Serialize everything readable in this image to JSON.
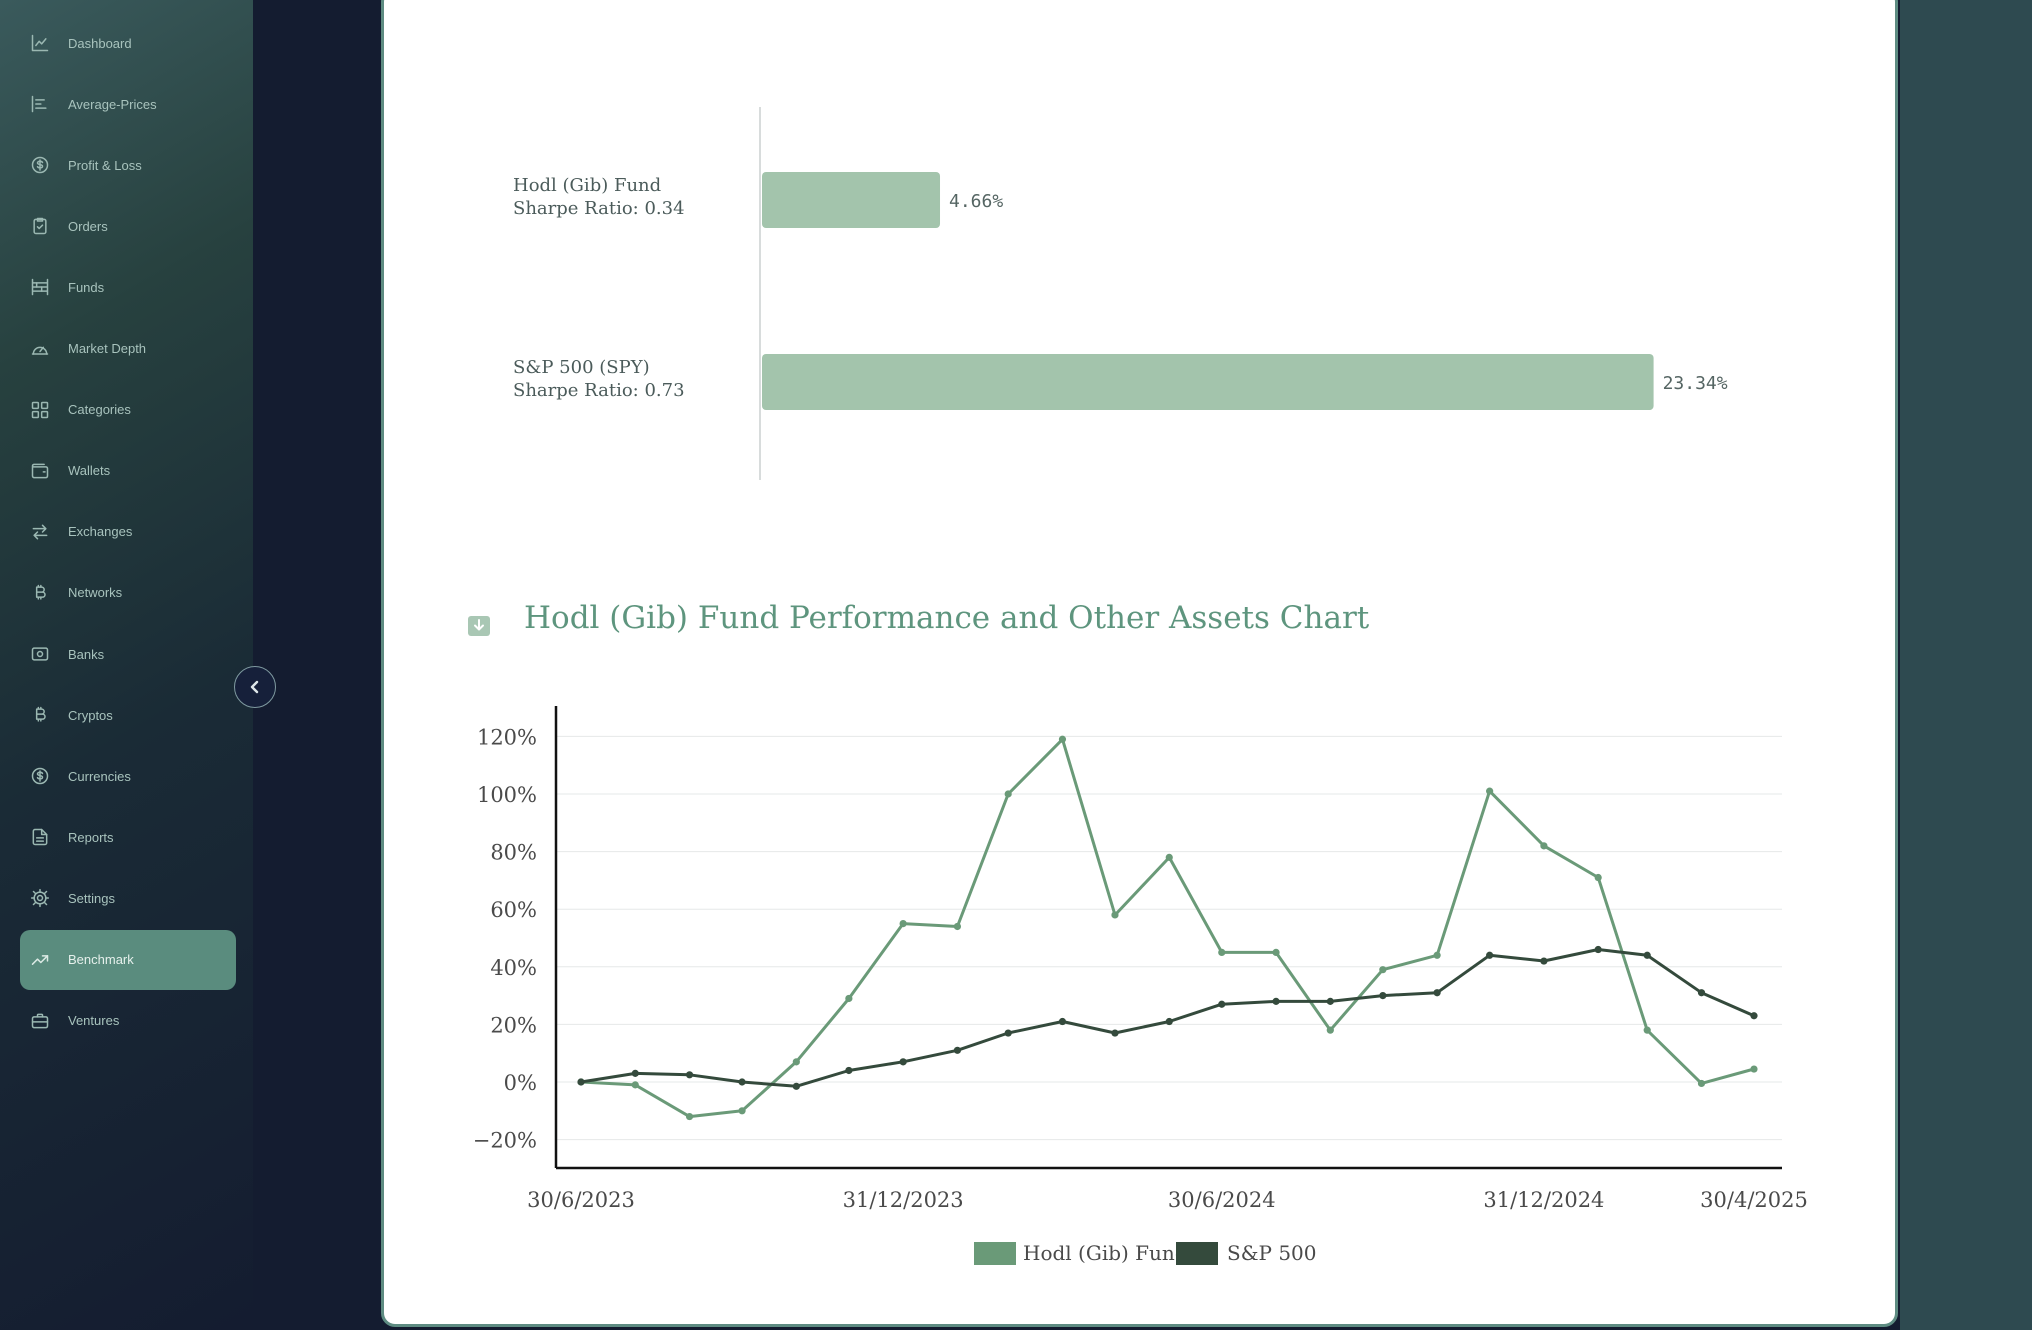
{
  "nav": {
    "items": [
      {
        "label": "Dashboard",
        "icon": "line-chart-icon"
      },
      {
        "label": "Average-Prices",
        "icon": "bar-align-left-icon"
      },
      {
        "label": "Profit & Loss",
        "icon": "dollar-circle-icon"
      },
      {
        "label": "Orders",
        "icon": "clipboard-check-icon"
      },
      {
        "label": "Funds",
        "icon": "funds-rows-icon"
      },
      {
        "label": "Market Depth",
        "icon": "gauge-icon"
      },
      {
        "label": "Categories",
        "icon": "grid-icon"
      },
      {
        "label": "Wallets",
        "icon": "wallet-icon"
      },
      {
        "label": "Exchanges",
        "icon": "arrows-exchange-icon"
      },
      {
        "label": "Networks",
        "icon": "bitcoin-icon"
      },
      {
        "label": "Banks",
        "icon": "banknote-icon"
      },
      {
        "label": "Cryptos",
        "icon": "bitcoin-icon"
      },
      {
        "label": "Currencies",
        "icon": "dollar-circle-icon"
      },
      {
        "label": "Reports",
        "icon": "file-text-icon"
      },
      {
        "label": "Settings",
        "icon": "gear-icon"
      },
      {
        "label": "Benchmark",
        "icon": "trending-up-icon"
      },
      {
        "label": "Ventures",
        "icon": "briefcase-icon"
      }
    ],
    "active": "Benchmark"
  },
  "colors": {
    "accent": "#5a8c7e",
    "fund_line": "#6a9a78",
    "spy_line": "#344a3c",
    "bar": "#a3c4ac",
    "title": "#5e957e"
  },
  "chart_data": [
    {
      "type": "bar",
      "orientation": "horizontal",
      "categories": [
        {
          "name": "Hodl (Gib) Fund",
          "sub": "Sharpe Ratio: 0.34"
        },
        {
          "name": "S&P 500 (SPY)",
          "sub": "Sharpe Ratio: 0.73"
        }
      ],
      "values": [
        4.66,
        23.34
      ],
      "value_labels": [
        "4.66%",
        "23.34%"
      ],
      "xlim": [
        0,
        25
      ]
    },
    {
      "type": "line",
      "title": "Hodl (Gib) Fund Performance and Other Assets Chart",
      "x": [
        "2023-06-30",
        "2023-07-31",
        "2023-08-31",
        "2023-09-30",
        "2023-10-31",
        "2023-11-30",
        "2023-12-31",
        "2024-01-31",
        "2024-02-29",
        "2024-03-31",
        "2024-04-30",
        "2024-05-31",
        "2024-06-30",
        "2024-07-31",
        "2024-08-31",
        "2024-09-30",
        "2024-10-31",
        "2024-11-30",
        "2024-12-31",
        "2025-01-31",
        "2025-02-28",
        "2025-03-31",
        "2025-04-30"
      ],
      "x_ticks": [
        "30/6/2023",
        "31/12/2023",
        "30/6/2024",
        "31/12/2024",
        "30/4/2025"
      ],
      "x_tick_dates": [
        "2023-06-30",
        "2023-12-31",
        "2024-06-30",
        "2024-12-31",
        "2025-04-30"
      ],
      "y_ticks": [
        "120%",
        "100%",
        "80%",
        "60%",
        "40%",
        "20%",
        "0%",
        "−20%"
      ],
      "ylim": [
        -30,
        125
      ],
      "grid": true,
      "legend_position": "bottom",
      "series": [
        {
          "name": "Hodl (Gib) Fund",
          "values": [
            0,
            -1,
            -12,
            -10,
            7,
            29,
            55,
            54,
            100,
            119,
            58,
            78,
            45,
            45,
            18,
            39,
            44,
            101,
            82,
            71,
            18,
            -0.5,
            4.5
          ]
        },
        {
          "name": "S&P 500",
          "values": [
            0,
            3,
            2.5,
            0,
            -1.5,
            4,
            7,
            11,
            17,
            21,
            17,
            21,
            27,
            28,
            28,
            30,
            31,
            44,
            42,
            46,
            44,
            31,
            23
          ]
        }
      ]
    }
  ]
}
